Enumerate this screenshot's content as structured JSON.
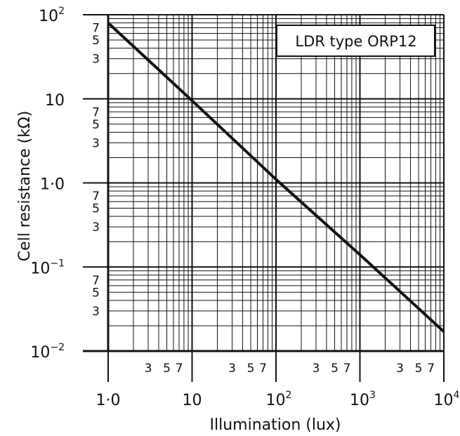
{
  "chart_data": {
    "type": "line",
    "legend_label": "LDR type ORP12",
    "legend_placement": "top-right",
    "xlabel": "Illumination (lux)",
    "ylabel": "Cell resistance (kΩ)",
    "xscale": "log",
    "yscale": "log",
    "xlim": [
      1,
      10000
    ],
    "ylim": [
      0.01,
      100
    ],
    "grid": true,
    "x_ticks": [
      {
        "value": 1,
        "base": "1·0",
        "sup": ""
      },
      {
        "value": 10,
        "base": "10",
        "sup": ""
      },
      {
        "value": 100,
        "base": "10",
        "sup": "2"
      },
      {
        "value": 1000,
        "base": "10",
        "sup": "3"
      },
      {
        "value": 10000,
        "base": "10",
        "sup": "4"
      }
    ],
    "y_ticks": [
      {
        "value": 100,
        "base": "10",
        "sup": "2"
      },
      {
        "value": 10,
        "base": "10",
        "sup": ""
      },
      {
        "value": 1,
        "base": "1·0",
        "sup": ""
      },
      {
        "value": 0.1,
        "base": "10",
        "sup": "−1"
      },
      {
        "value": 0.01,
        "base": "10",
        "sup": "−2"
      }
    ],
    "minor_labels": [
      "3",
      "5",
      "7"
    ],
    "series": [
      {
        "x": [
          1,
          10,
          100,
          1000,
          10000
        ],
        "y": [
          80,
          9.5,
          1.1,
          0.14,
          0.017
        ]
      }
    ]
  }
}
